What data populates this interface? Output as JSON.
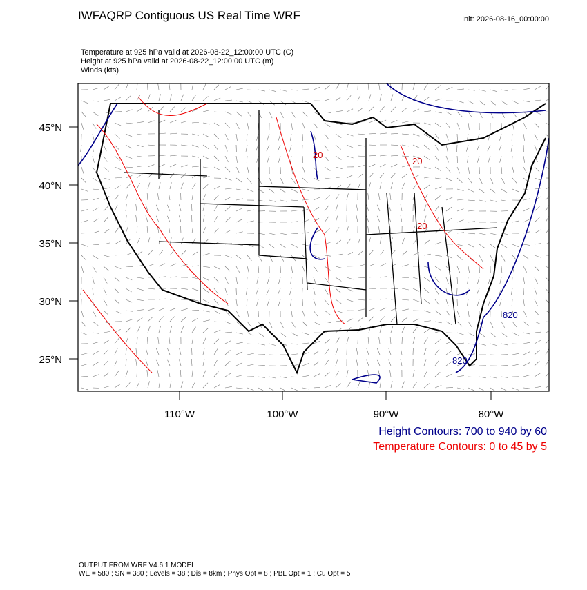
{
  "header": {
    "title": "IWFAQRP Contiguous US Real Time WRF",
    "init": "Init: 2026-08-16_00:00:00",
    "fields": [
      "Temperature at 925 hPa valid at 2026-08-22_12:00:00 UTC   (C)",
      "Height at 925 hPa valid at 2026-08-22_12:00:00 UTC   (m)",
      "Winds   (kts)"
    ]
  },
  "map": {
    "lat_labels": [
      "45°N",
      "40°N",
      "35°N",
      "30°N",
      "25°N"
    ],
    "lon_labels": [
      "110°W",
      "100°W",
      "90°W",
      "80°W"
    ],
    "height_labels": [
      "820",
      "820"
    ],
    "temperature_labels": [
      "20",
      "20",
      "20"
    ]
  },
  "legend": [
    "Height Contours: 700 to 940 by 60",
    "Temperature Contours: 0 to 45 by 5"
  ],
  "footer": [
    "OUTPUT FROM WRF V4.6.1 MODEL",
    "WE = 580 ; SN = 380 ; Levels = 38 ; Dis = 8km ; Phys Opt = 8 ; PBL Opt = 1 ; Cu Opt = 5"
  ]
}
